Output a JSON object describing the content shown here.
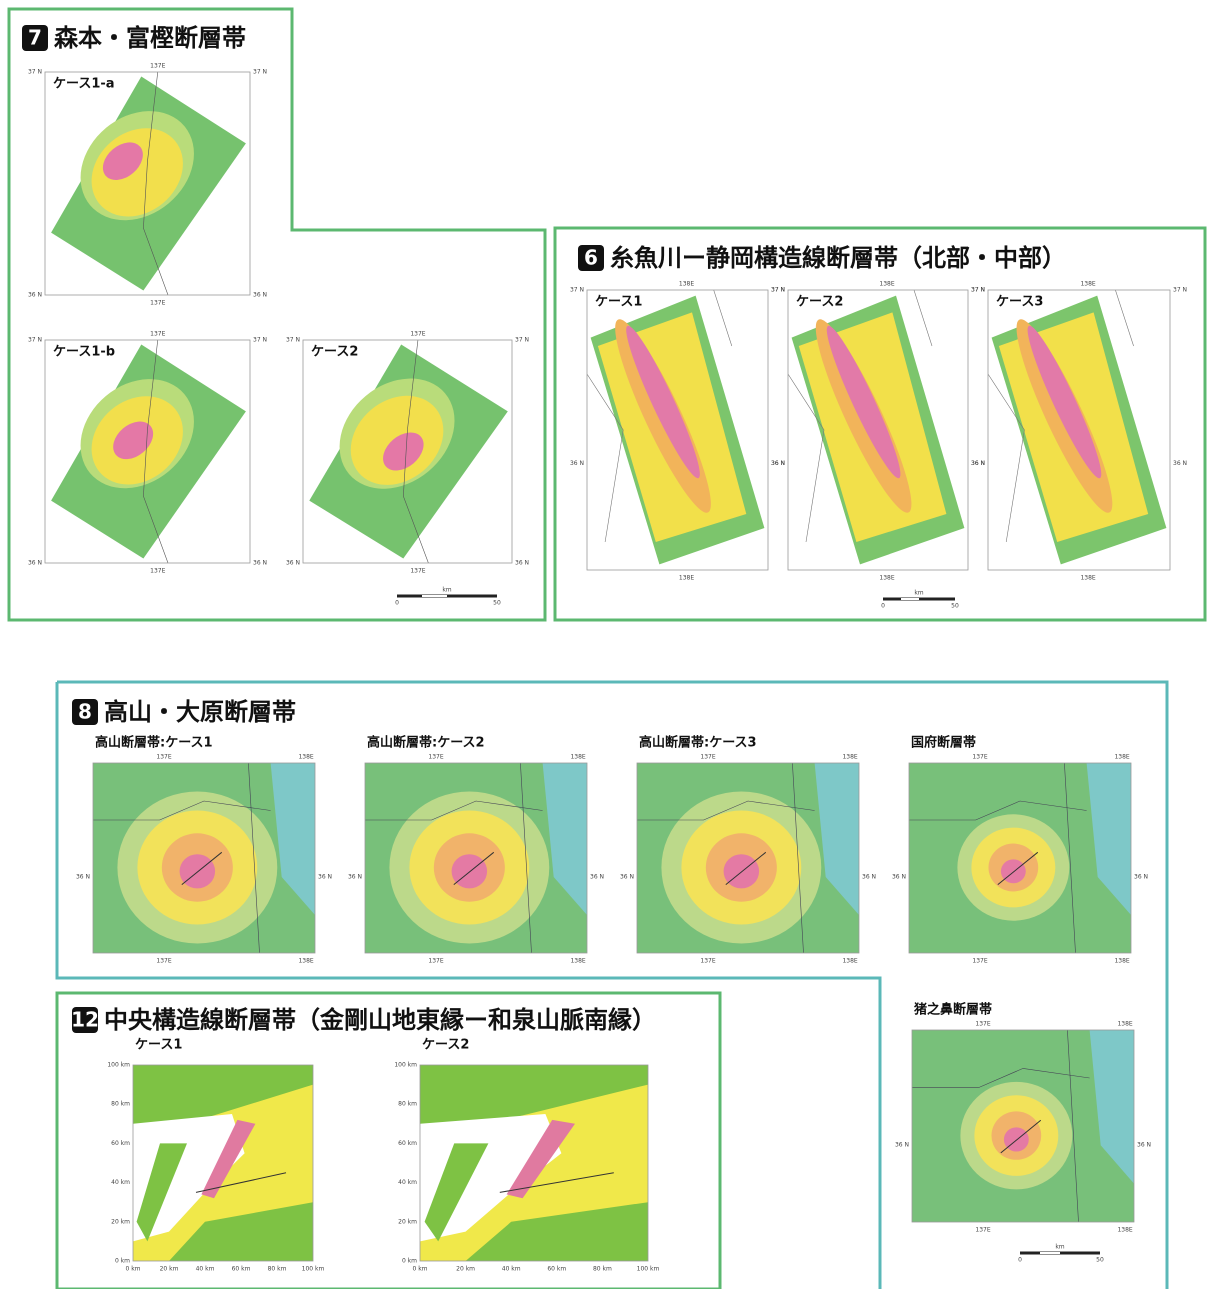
{
  "sections": [
    {
      "badge": "7",
      "title": "森本・富樫断層帯",
      "panels": [
        {
          "label": "ケース1-a",
          "ticks": {
            "top": [
              "137E"
            ],
            "bottom": [
              "137E"
            ],
            "left": [
              "37 N",
              "36 N"
            ],
            "right": [
              "37 N",
              "36 N"
            ]
          }
        },
        {
          "label": "ケース1-b",
          "ticks": {
            "top": [
              "137E"
            ],
            "bottom": [
              "137E"
            ],
            "left": [
              "37 N",
              "36 N"
            ],
            "right": [
              "37 N",
              "36 N"
            ]
          }
        },
        {
          "label": "ケース2",
          "ticks": {
            "top": [
              "137E"
            ],
            "bottom": [
              "137E"
            ],
            "left": [
              "37 N",
              "36 N"
            ],
            "right": [
              "37 N",
              "36 N"
            ]
          }
        }
      ],
      "scale": {
        "unit": "km",
        "start": "0",
        "end": "50"
      }
    },
    {
      "badge": "6",
      "title": "糸魚川ー静岡構造線断層帯（北部・中部）",
      "panels": [
        {
          "label": "ケース1",
          "ticks": {
            "top": [
              "138E"
            ],
            "bottom": [
              "138E"
            ],
            "left": [
              "37 N",
              "36 N"
            ],
            "right": [
              "37 N",
              "36 N"
            ]
          }
        },
        {
          "label": "ケース2",
          "ticks": {
            "top": [
              "138E"
            ],
            "bottom": [
              "138E"
            ],
            "left": [
              "37 N",
              "36 N"
            ],
            "right": [
              "37 N",
              "36 N"
            ]
          }
        },
        {
          "label": "ケース3",
          "ticks": {
            "top": [
              "138E"
            ],
            "bottom": [
              "138E"
            ],
            "left": [
              "37 N",
              "36 N"
            ],
            "right": [
              "37 N",
              "36 N"
            ]
          }
        }
      ],
      "scale": {
        "unit": "km",
        "start": "0",
        "end": "50"
      }
    },
    {
      "badge": "8",
      "title": "高山・大原断層帯",
      "panels": [
        {
          "label": "高山断層帯:ケース1",
          "ticks": {
            "top": [
              "137E",
              "138E"
            ],
            "bottom": [
              "137E",
              "138E"
            ],
            "left": [
              "36 N"
            ],
            "right": [
              "36 N"
            ]
          }
        },
        {
          "label": "高山断層帯:ケース2",
          "ticks": {
            "top": [
              "137E",
              "138E"
            ],
            "bottom": [
              "137E",
              "138E"
            ],
            "left": [
              "36 N"
            ],
            "right": [
              "36 N"
            ]
          }
        },
        {
          "label": "高山断層帯:ケース3",
          "ticks": {
            "top": [
              "137E",
              "138E"
            ],
            "bottom": [
              "137E",
              "138E"
            ],
            "left": [
              "36 N"
            ],
            "right": [
              "36 N"
            ]
          }
        },
        {
          "label": "国府断層帯",
          "ticks": {
            "top": [
              "137E",
              "138E"
            ],
            "bottom": [
              "137E",
              "138E"
            ],
            "left": [
              "36 N"
            ],
            "right": [
              "36 N"
            ]
          }
        },
        {
          "label": "猪之鼻断層帯",
          "ticks": {
            "top": [
              "137E",
              "138E"
            ],
            "bottom": [
              "137E",
              "138E"
            ],
            "left": [
              "36 N"
            ],
            "right": [
              "36 N"
            ]
          }
        }
      ],
      "scale": {
        "unit": "km",
        "start": "0",
        "end": "50"
      }
    },
    {
      "badge": "12",
      "title": "中央構造線断層帯（金剛山地東縁ー和泉山脈南縁）",
      "panels": [
        {
          "label": "ケース1",
          "ticks": {
            "left": [
              "100 km",
              "80 km",
              "60 km",
              "40 km",
              "20 km",
              "0 km"
            ],
            "bottom": [
              "0 km",
              "20 km",
              "40 km",
              "60 km",
              "80 km",
              "100 km"
            ]
          }
        },
        {
          "label": "ケース2",
          "ticks": {
            "left": [
              "100 km",
              "80 km",
              "60 km",
              "40 km",
              "20 km",
              "0 km"
            ],
            "bottom": [
              "0 km",
              "20 km",
              "40 km",
              "60 km",
              "80 km",
              "100 km"
            ]
          }
        }
      ]
    }
  ]
}
